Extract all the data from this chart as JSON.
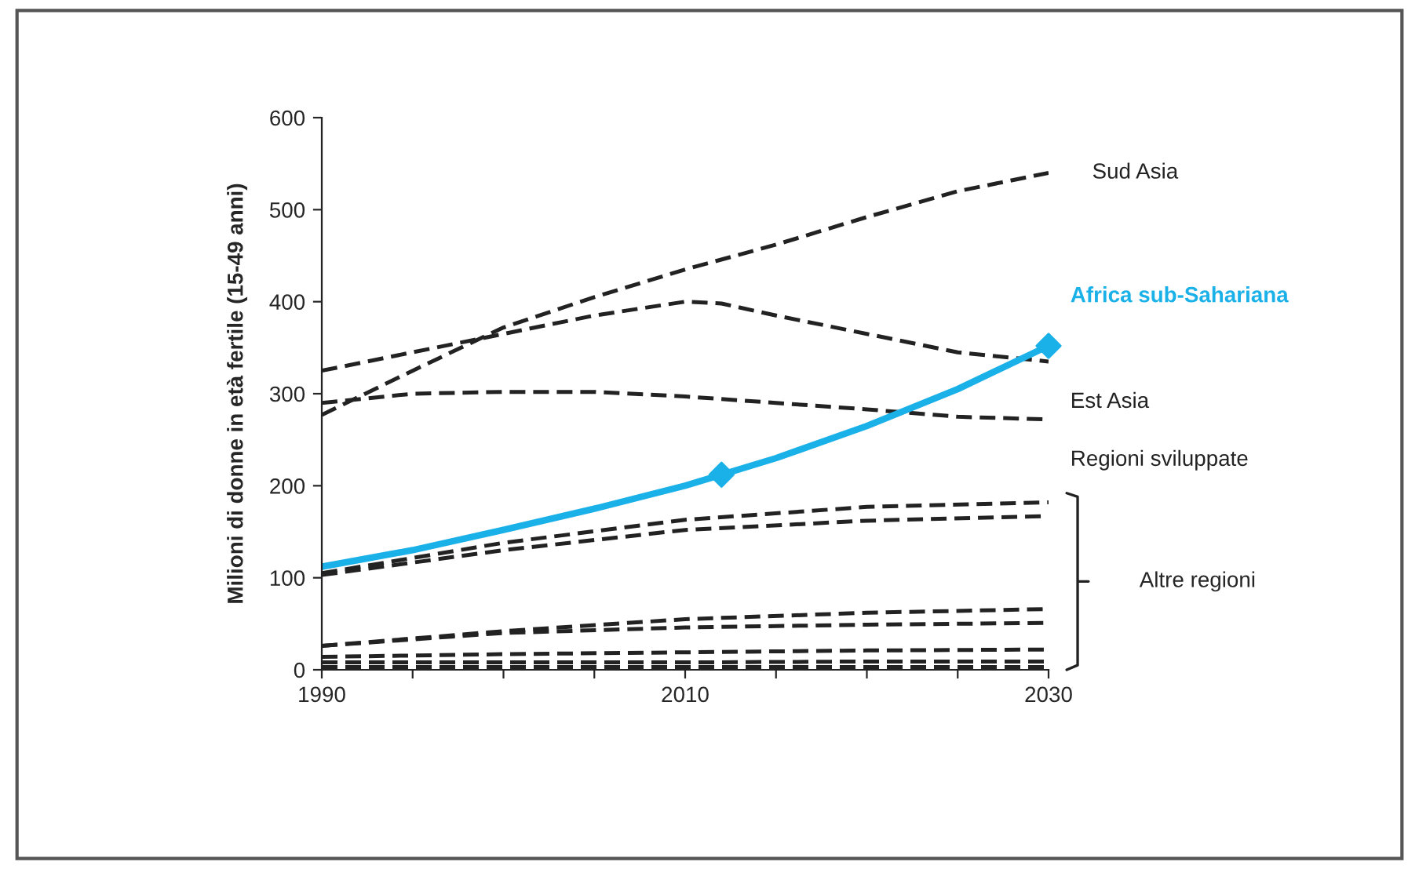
{
  "chart_data": {
    "type": "line",
    "ylabel": "Milioni di donne in età fertile (15-49 anni)",
    "xlim": [
      1990,
      2030
    ],
    "ylim": [
      0,
      600
    ],
    "xticks": [
      1990,
      {
        "value": 1995,
        "label": null
      },
      {
        "value": 2000,
        "label": null
      },
      {
        "value": 2005,
        "label": null
      },
      2010,
      {
        "value": 2015,
        "label": null
      },
      {
        "value": 2020,
        "label": null
      },
      {
        "value": 2025,
        "label": null
      },
      2030
    ],
    "yticks": [
      0,
      100,
      200,
      300,
      400,
      500,
      600
    ],
    "grid": false,
    "legend": false,
    "line_style": "dashed",
    "marker": "none",
    "annotations": [
      "Altre regioni"
    ],
    "series": [
      {
        "name": "Sud Asia",
        "color": "#222222",
        "x": [
          1990,
          1995,
          2000,
          2005,
          2010,
          2015,
          2020,
          2025,
          2030
        ],
        "values": [
          277,
          325,
          372,
          405,
          435,
          462,
          492,
          520,
          540
        ]
      },
      {
        "name": "Est Asia",
        "color": "#222222",
        "x": [
          1990,
          1995,
          2000,
          2005,
          2010,
          2012,
          2015,
          2020,
          2025,
          2030
        ],
        "values": [
          325,
          345,
          365,
          385,
          400,
          398,
          385,
          365,
          345,
          335
        ]
      },
      {
        "name": "Regioni sviluppate",
        "color": "#222222",
        "x": [
          1990,
          1995,
          2000,
          2005,
          2010,
          2015,
          2020,
          2025,
          2030
        ],
        "values": [
          290,
          300,
          302,
          302,
          297,
          290,
          283,
          275,
          272
        ]
      },
      {
        "name": "Africa sub-Sahariana",
        "color": "#1ab0e8",
        "line_style": "solid",
        "x": [
          1990,
          1995,
          2000,
          2005,
          2010,
          2012,
          2015,
          2020,
          2025,
          2030
        ],
        "values": [
          112,
          130,
          152,
          175,
          200,
          212,
          230,
          265,
          305,
          352
        ]
      },
      {
        "type": "scatter",
        "marker": "diamond",
        "color": "#1ab0e8",
        "x": [
          2012,
          2030
        ],
        "values": [
          212,
          352
        ]
      },
      {
        "color": "#222222",
        "x": [
          1990,
          2000,
          2010,
          2020,
          2030
        ],
        "values": [
          105,
          138,
          163,
          177,
          182
        ]
      },
      {
        "color": "#222222",
        "x": [
          1990,
          2000,
          2010,
          2020,
          2030
        ],
        "values": [
          103,
          130,
          152,
          162,
          167
        ]
      },
      {
        "color": "#222222",
        "x": [
          1990,
          2000,
          2010,
          2020,
          2030
        ],
        "values": [
          26,
          42,
          55,
          62,
          66
        ]
      },
      {
        "color": "#222222",
        "x": [
          1990,
          2000,
          2010,
          2020,
          2030
        ],
        "values": [
          26,
          40,
          46,
          49,
          51
        ]
      },
      {
        "color": "#222222",
        "x": [
          1990,
          2000,
          2010,
          2020,
          2030
        ],
        "values": [
          14,
          17,
          19,
          21,
          22
        ]
      },
      {
        "color": "#222222",
        "x": [
          1990,
          2000,
          2010,
          2020,
          2030
        ],
        "values": [
          8,
          8,
          8,
          9,
          9
        ]
      },
      {
        "color": "#222222",
        "x": [
          1990,
          2000,
          2010,
          2020,
          2030
        ],
        "values": [
          3,
          3,
          3,
          3,
          3
        ]
      }
    ]
  }
}
